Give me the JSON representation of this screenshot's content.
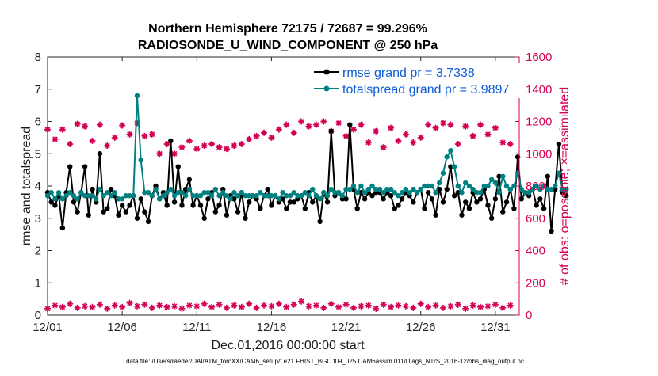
{
  "chart_data": {
    "type": "line",
    "title": "Northern Hemisphere 72175 / 72687 = 99.296%",
    "subtitle": "RADIOSONDE_U_WIND_COMPONENT @ 250 hPa",
    "xlabel": "Dec.01,2016 00:00:00 start",
    "ylabel": "rmse and totalspread",
    "ylabel_right": "# of obs: o=possible; ×=assimilated",
    "footnote": "data file: /Users/raeder/DAI/ATM_forcXX/CAM6_setup/f.e21.FHIST_BGC.f09_025.CAM6assim.011/Diags_NTrS_2016-12/obs_diag_output.nc",
    "xlim": [
      0,
      31.6
    ],
    "ylim": [
      0,
      8
    ],
    "ylim_right": [
      0,
      1600
    ],
    "x_ticks": [
      0,
      5,
      10,
      15,
      20,
      25,
      30
    ],
    "x_tick_labels": [
      "12/01",
      "12/06",
      "12/11",
      "12/16",
      "12/21",
      "12/26",
      "12/31"
    ],
    "y_ticks": [
      0,
      1,
      2,
      3,
      4,
      5,
      6,
      7,
      8
    ],
    "y_tick_labels": [
      "0",
      "1",
      "2",
      "3",
      "4",
      "5",
      "6",
      "7",
      "8"
    ],
    "y_right_ticks": [
      0,
      200,
      400,
      600,
      800,
      1000,
      1200,
      1400,
      1600
    ],
    "y_right_tick_labels": [
      "0",
      "200",
      "400",
      "600",
      "800",
      "1000",
      "1200",
      "1400",
      "1600"
    ],
    "x_step_days": 0.25,
    "series": [
      {
        "name": "rmse grand pr = 3.7338",
        "color": "#000000",
        "axis": "left",
        "values": [
          3.8,
          3.5,
          3.4,
          3.7,
          2.7,
          3.8,
          4.6,
          3.5,
          3.2,
          3.8,
          4.6,
          3.1,
          3.9,
          3.5,
          5.0,
          3.2,
          3.3,
          3.9,
          3.7,
          3.1,
          3.4,
          3.2,
          3.4,
          3.7,
          3.0,
          3.6,
          3.2,
          2.9,
          3.7,
          4.0,
          3.6,
          3.8,
          3.4,
          5.4,
          3.5,
          4.6,
          3.4,
          3.9,
          4.2,
          3.4,
          3.7,
          3.4,
          3.0,
          3.6,
          3.8,
          3.2,
          3.4,
          3.9,
          3.1,
          3.7,
          3.6,
          3.2,
          3.8,
          3.0,
          3.5,
          3.7,
          3.6,
          3.3,
          3.7,
          3.9,
          3.4,
          3.7,
          3.5,
          3.6,
          3.3,
          3.5,
          3.5,
          3.6,
          3.7,
          3.3,
          3.8,
          3.5,
          3.7,
          2.9,
          3.8,
          3.5,
          5.7,
          3.7,
          3.8,
          3.6,
          3.6,
          5.9,
          3.9,
          3.3,
          3.8,
          3.6,
          3.8,
          3.7,
          3.8,
          3.8,
          3.6,
          3.8,
          3.7,
          3.3,
          3.4,
          3.6,
          3.8,
          3.7,
          3.5,
          3.8,
          3.9,
          3.3,
          3.8,
          3.6,
          3.1,
          3.9,
          3.5,
          3.9,
          4.6,
          3.7,
          3.8,
          3.1,
          3.5,
          3.3,
          3.8,
          3.5,
          3.6,
          3.9,
          3.4,
          3.0,
          3.6,
          4.3,
          3.2,
          3.5,
          3.9,
          3.3,
          4.9,
          3.6,
          3.8,
          3.7,
          3.9,
          3.4,
          3.6,
          3.3,
          4.3,
          2.6,
          3.9,
          5.3,
          3.8,
          3.7
        ]
      },
      {
        "name": "totalspread grand pr = 3.9897",
        "color": "#008080",
        "axis": "left",
        "values": [
          3.7,
          3.8,
          3.6,
          3.8,
          3.6,
          3.7,
          3.8,
          3.7,
          3.6,
          3.8,
          3.7,
          3.7,
          3.7,
          3.6,
          3.9,
          3.7,
          3.8,
          3.7,
          3.8,
          3.6,
          3.6,
          3.7,
          3.7,
          3.7,
          6.8,
          4.8,
          3.8,
          3.8,
          3.7,
          3.9,
          3.6,
          3.7,
          3.8,
          3.9,
          3.7,
          3.8,
          3.8,
          3.7,
          3.9,
          3.7,
          3.7,
          3.7,
          3.8,
          3.8,
          3.7,
          3.9,
          3.7,
          3.8,
          3.7,
          3.6,
          3.8,
          3.7,
          3.8,
          3.7,
          3.7,
          3.7,
          3.7,
          3.8,
          3.7,
          3.7,
          3.7,
          3.7,
          3.6,
          3.8,
          3.7,
          3.7,
          3.8,
          3.7,
          3.7,
          3.8,
          3.7,
          3.9,
          3.7,
          3.6,
          3.8,
          3.7,
          3.9,
          3.8,
          3.8,
          3.7,
          3.9,
          3.9,
          4.0,
          3.8,
          4.0,
          3.8,
          3.9,
          4.0,
          3.9,
          3.9,
          3.8,
          3.9,
          3.9,
          3.8,
          3.7,
          3.8,
          3.9,
          3.8,
          3.9,
          3.8,
          3.9,
          4.0,
          4.0,
          4.0,
          3.8,
          4.1,
          4.4,
          4.9,
          5.1,
          4.6,
          4.0,
          3.8,
          4.1,
          4.0,
          3.9,
          3.8,
          3.8,
          4.0,
          4.0,
          4.2,
          4.1,
          3.8,
          4.3,
          4.0,
          3.9,
          4.0,
          4.4,
          3.9,
          3.8,
          3.8,
          3.9,
          4.0,
          3.9,
          4.0,
          3.9,
          3.9,
          4.0,
          4.4,
          3.9,
          3.9
        ]
      },
      {
        "name": "# of obs possible",
        "color": "#d40055",
        "axis": "right",
        "marker": "circle",
        "x_step_days": 0.5,
        "values": [
          1150,
          1090,
          1150,
          1060,
          1185,
          1170,
          1080,
          1180,
          1050,
          1100,
          1175,
          1120,
          1190,
          1110,
          1120,
          1000,
          1060,
          1000,
          1040,
          1080,
          1030,
          1050,
          1060,
          1040,
          1030,
          1050,
          1060,
          1090,
          1110,
          1130,
          1100,
          1150,
          1180,
          1130,
          1200,
          1170,
          1180,
          1200,
          1140,
          1190,
          1110,
          1150,
          1180,
          1070,
          1140,
          1040,
          1160,
          1080,
          1120,
          1070,
          1100,
          1180,
          1160,
          1190,
          1180,
          1060,
          1170,
          1110,
          1180,
          1120,
          1160,
          1070,
          1060
        ]
      }
    ],
    "legend": [
      "rmse grand pr = 3.7338",
      "totalspread grand pr = 3.9897"
    ],
    "legend_position": "top-right"
  }
}
